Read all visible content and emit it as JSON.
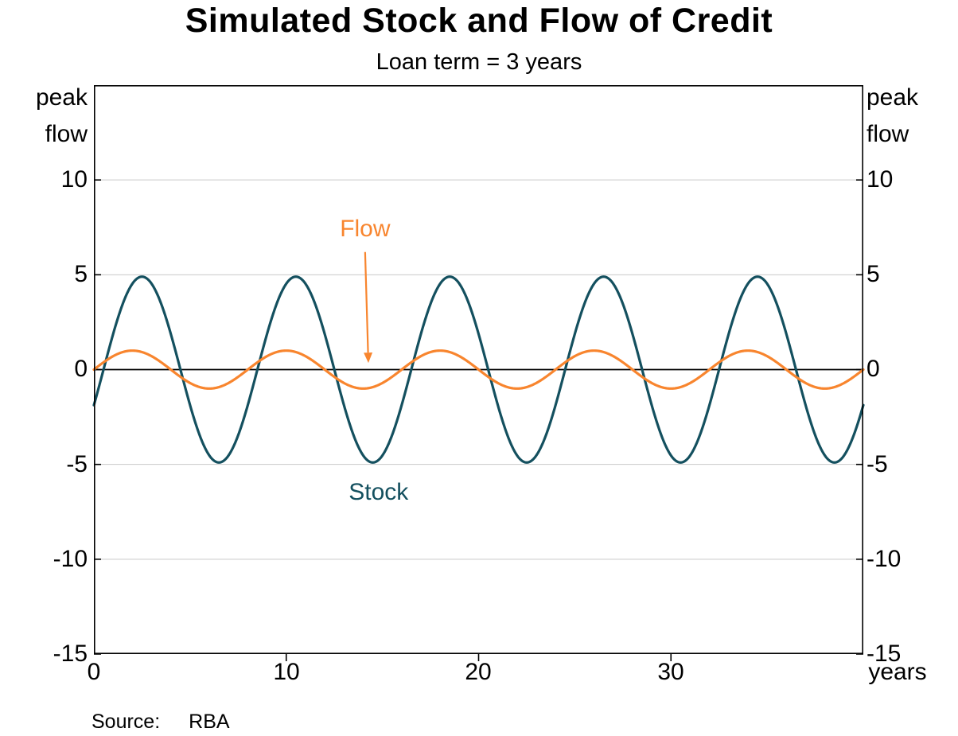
{
  "chart_data": {
    "type": "line",
    "title": "Simulated Stock and Flow of Credit",
    "subtitle": "Loan term = 3 years",
    "x_axis": {
      "label": "years",
      "min": 0,
      "max": 40,
      "ticks": [
        0,
        10,
        20,
        30
      ]
    },
    "y_axis": {
      "min": -15,
      "max": 15,
      "ticks": [
        10,
        5,
        0,
        -5,
        -10,
        -15
      ],
      "unit_label": "peak\nflow",
      "mirrored_right": true,
      "gridlines": [
        10,
        5,
        -5,
        -10
      ],
      "zero_line": true,
      "grid_color": "#c9c9c9"
    },
    "series": [
      {
        "name": "Stock",
        "color": "#14505f",
        "curve": "sine",
        "amplitude": 4.9,
        "period_years": 8,
        "phase_years": 0.5,
        "x_sample_years": [
          0,
          1,
          2,
          3,
          4,
          5,
          6,
          7,
          8,
          9,
          10,
          11,
          12,
          13,
          14,
          15,
          16,
          17,
          18,
          19,
          20,
          21,
          22,
          23,
          24,
          25,
          26,
          27,
          28,
          29,
          30,
          31,
          32,
          33,
          34,
          35,
          36,
          37,
          38,
          39,
          40
        ],
        "values_by_year": [
          -1.88,
          1.88,
          4.53,
          4.53,
          1.88,
          -1.88,
          -4.53,
          -4.53,
          -1.88,
          1.88,
          4.53,
          4.53,
          1.88,
          -1.88,
          -4.53,
          -4.53,
          -1.88,
          1.88,
          4.53,
          4.53,
          1.88,
          -1.88,
          -4.53,
          -4.53,
          -1.88,
          1.88,
          4.53,
          4.53,
          1.88,
          -1.88,
          -4.53,
          -4.53,
          -1.88,
          1.88,
          4.53,
          4.53,
          1.88,
          -1.88,
          -4.53,
          -4.53,
          -1.88
        ]
      },
      {
        "name": "Flow",
        "color": "#f8852e",
        "curve": "sine",
        "amplitude": 1.0,
        "period_years": 8,
        "phase_years": 0.0,
        "x_sample_years": [
          0,
          1,
          2,
          3,
          4,
          5,
          6,
          7,
          8,
          9,
          10,
          11,
          12,
          13,
          14,
          15,
          16,
          17,
          18,
          19,
          20,
          21,
          22,
          23,
          24,
          25,
          26,
          27,
          28,
          29,
          30,
          31,
          32,
          33,
          34,
          35,
          36,
          37,
          38,
          39,
          40
        ],
        "values_by_year": [
          0,
          0.71,
          1,
          0.71,
          0,
          -0.71,
          -1,
          -0.71,
          0,
          0.71,
          1,
          0.71,
          0,
          -0.71,
          -1,
          -0.71,
          0,
          0.71,
          1,
          0.71,
          0,
          -0.71,
          -1,
          -0.71,
          0,
          0.71,
          1,
          0.71,
          0,
          -0.71,
          -1,
          -0.71,
          0,
          0.71,
          1,
          0.71,
          0,
          -0.71,
          -1,
          -0.71,
          0
        ]
      }
    ],
    "annotations": [
      {
        "text": "Flow",
        "color": "#f8852e",
        "x": 14.1,
        "y": 7.4,
        "arrow": {
          "from": {
            "x": 14.1,
            "y": 6.2
          },
          "to": {
            "x": 14.27,
            "y": 0.35
          }
        }
      },
      {
        "text": "Stock",
        "color": "#14505f",
        "x": 14.8,
        "y": -6.5,
        "arrow": null
      }
    ],
    "legend": "none"
  },
  "footer": {
    "source_label": "Source:",
    "source_value": "RBA"
  }
}
